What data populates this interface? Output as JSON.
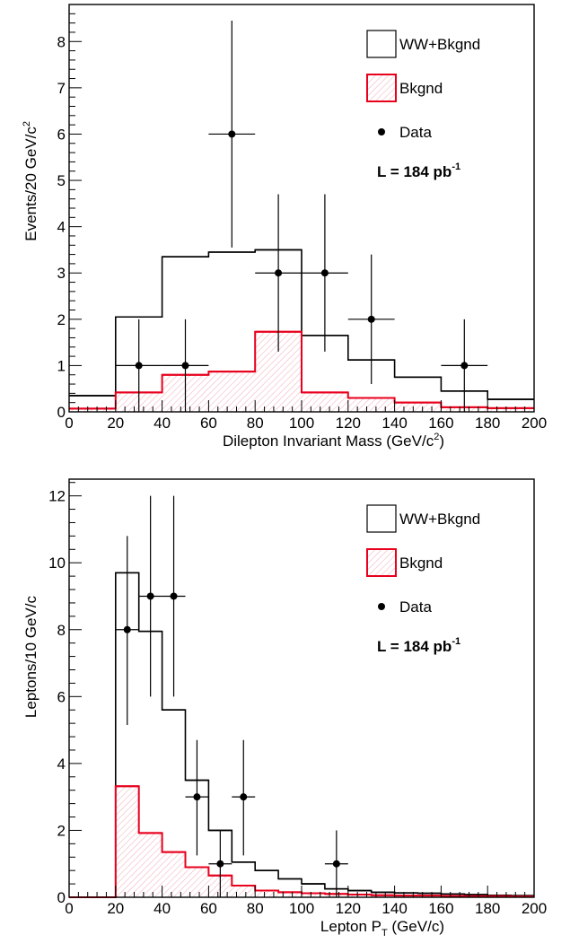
{
  "chart_data": [
    {
      "type": "histogram",
      "xlabel": "Dilepton Invariant Mass (GeV/c",
      "xlabel_sup": "2",
      "xlabel_tail": ")",
      "ylabel": "Events/20 GeV/c",
      "ylabel_sup": "2",
      "xlim": [
        0,
        200
      ],
      "ylim": [
        0,
        8.8
      ],
      "x_ticks": [
        0,
        20,
        40,
        60,
        80,
        100,
        120,
        140,
        160,
        180,
        200
      ],
      "y_ticks": [
        0,
        1,
        2,
        3,
        4,
        5,
        6,
        7,
        8
      ],
      "bin_edges": [
        0,
        20,
        40,
        60,
        80,
        100,
        120,
        140,
        160,
        180,
        200
      ],
      "series": [
        {
          "name": "WW+Bkgnd",
          "style": "step",
          "color": "#000000",
          "values": [
            0.35,
            2.05,
            3.35,
            3.45,
            3.5,
            1.65,
            1.12,
            0.75,
            0.45,
            0.27
          ]
        },
        {
          "name": "Bkgnd",
          "style": "hatched-step",
          "color": "#e8001c",
          "values": [
            0.07,
            0.42,
            0.8,
            0.87,
            1.73,
            0.42,
            0.3,
            0.2,
            0.1,
            0.08
          ]
        },
        {
          "name": "Data",
          "style": "points",
          "points": [
            {
              "x": 30,
              "y": 1,
              "xerr": 10,
              "ylo": 0,
              "yhi": 2.0
            },
            {
              "x": 50,
              "y": 1,
              "xerr": 10,
              "ylo": 0,
              "yhi": 2.0
            },
            {
              "x": 70,
              "y": 6,
              "xerr": 10,
              "ylo": 3.55,
              "yhi": 8.45
            },
            {
              "x": 90,
              "y": 3,
              "xerr": 10,
              "ylo": 1.3,
              "yhi": 4.7
            },
            {
              "x": 110,
              "y": 3,
              "xerr": 10,
              "ylo": 1.3,
              "yhi": 4.7
            },
            {
              "x": 130,
              "y": 2,
              "xerr": 10,
              "ylo": 0.6,
              "yhi": 3.4
            },
            {
              "x": 170,
              "y": 1,
              "xerr": 10,
              "ylo": 0,
              "yhi": 2.0
            }
          ]
        }
      ],
      "legend": [
        {
          "label": "WW+Bkgnd",
          "kind": "box"
        },
        {
          "label": "Bkgnd",
          "kind": "hatched"
        },
        {
          "label": "Data",
          "kind": "marker"
        }
      ],
      "annotation": {
        "text": "L = 184 pb",
        "sup": "-1"
      }
    },
    {
      "type": "histogram",
      "xlabel": "Lepton P",
      "xlabel_sub": "T",
      "xlabel_tail": " (GeV/c)",
      "ylabel": "Leptons/10 GeV/c",
      "xlim": [
        0,
        200
      ],
      "ylim": [
        0,
        12.5
      ],
      "x_ticks": [
        0,
        20,
        40,
        60,
        80,
        100,
        120,
        140,
        160,
        180,
        200
      ],
      "y_ticks": [
        0,
        2,
        4,
        6,
        8,
        10,
        12
      ],
      "bin_edges": [
        0,
        10,
        20,
        30,
        40,
        50,
        60,
        70,
        80,
        90,
        100,
        110,
        120,
        130,
        140,
        150,
        160,
        170,
        180,
        190,
        200
      ],
      "series": [
        {
          "name": "WW+Bkgnd",
          "style": "step",
          "color": "#000000",
          "values": [
            0,
            0,
            9.7,
            7.95,
            5.6,
            3.5,
            2.0,
            1.05,
            0.8,
            0.55,
            0.4,
            0.25,
            0.2,
            0.15,
            0.13,
            0.12,
            0.1,
            0.08,
            0.06,
            0.05
          ]
        },
        {
          "name": "Bkgnd",
          "style": "hatched-step",
          "color": "#e8001c",
          "values": [
            0,
            0,
            3.32,
            1.92,
            1.35,
            0.9,
            0.65,
            0.35,
            0.2,
            0.15,
            0.12,
            0.1,
            0.08,
            0.06,
            0.05,
            0.05,
            0.04,
            0.03,
            0.03,
            0.02
          ]
        },
        {
          "name": "Data",
          "style": "points",
          "points": [
            {
              "x": 25,
              "y": 8,
              "xerr": 5,
              "ylo": 5.15,
              "yhi": 10.8
            },
            {
              "x": 35,
              "y": 9,
              "xerr": 5,
              "ylo": 6.0,
              "yhi": 12.0
            },
            {
              "x": 45,
              "y": 9,
              "xerr": 5,
              "ylo": 6.0,
              "yhi": 12.0
            },
            {
              "x": 55,
              "y": 3,
              "xerr": 5,
              "ylo": 1.25,
              "yhi": 4.7
            },
            {
              "x": 65,
              "y": 1,
              "xerr": 5,
              "ylo": 0,
              "yhi": 2.0
            },
            {
              "x": 75,
              "y": 3,
              "xerr": 5,
              "ylo": 1.25,
              "yhi": 4.7
            },
            {
              "x": 115,
              "y": 1,
              "xerr": 5,
              "ylo": 0,
              "yhi": 2.0
            }
          ]
        }
      ],
      "legend": [
        {
          "label": "WW+Bkgnd",
          "kind": "box"
        },
        {
          "label": "Bkgnd",
          "kind": "hatched"
        },
        {
          "label": "Data",
          "kind": "marker"
        }
      ],
      "annotation": {
        "text": "L = 184 pb",
        "sup": "-1"
      }
    }
  ]
}
